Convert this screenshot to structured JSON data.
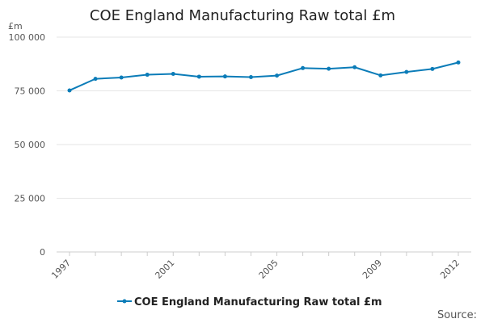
{
  "chart_data": {
    "type": "line",
    "title": "COE England Manufacturing Raw total £m",
    "ylabel": "£m",
    "xlabel": "",
    "x": [
      1997,
      1998,
      1999,
      2000,
      2001,
      2002,
      2003,
      2004,
      2005,
      2006,
      2007,
      2008,
      2009,
      2010,
      2011,
      2012
    ],
    "series": [
      {
        "name": "COE England Manufacturing Raw total £m",
        "color": "#0b7cb8",
        "values": [
          75200,
          80600,
          81200,
          82500,
          82900,
          81600,
          81700,
          81400,
          82100,
          85600,
          85300,
          86000,
          82200,
          83800,
          85200,
          88200
        ]
      }
    ],
    "ylim": [
      0,
      100000
    ],
    "yticks": [
      0,
      25000,
      50000,
      75000,
      100000
    ],
    "ytick_labels": [
      "0",
      "25 000",
      "50 000",
      "75 000",
      "100 000"
    ],
    "xticks": [
      1997,
      2001,
      2005,
      2009,
      2012
    ],
    "xtick_labels": [
      "1997",
      "2001",
      "2005",
      "2009",
      "2012"
    ],
    "grid": true,
    "legend_position": "bottom"
  },
  "footer": {
    "source_label": "Source:"
  }
}
